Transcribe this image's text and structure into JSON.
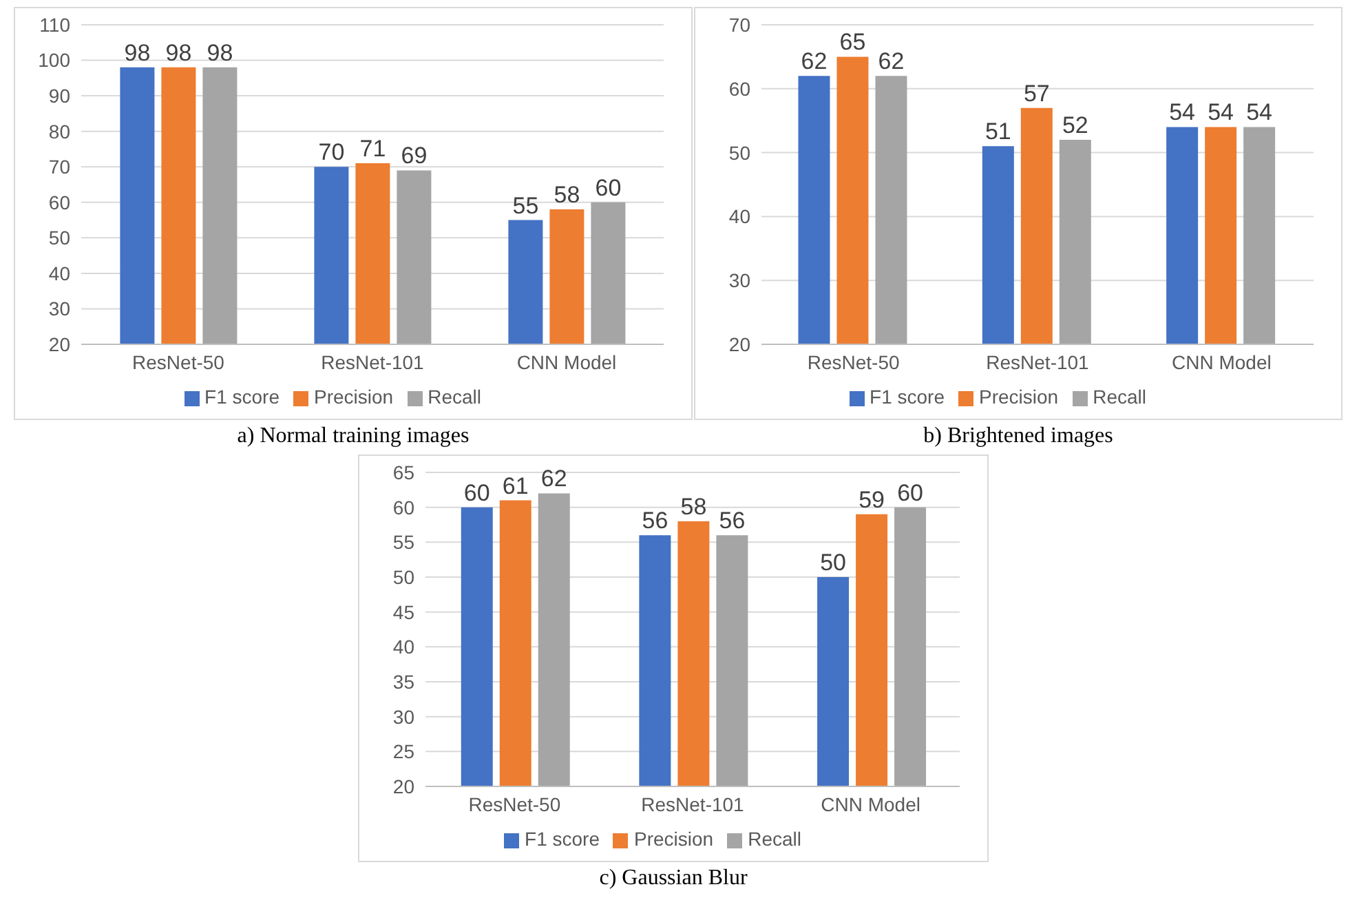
{
  "chart_data": [
    {
      "type": "bar",
      "title": "a) Normal training images",
      "categories": [
        "ResNet-50",
        "ResNet-101",
        "CNN Model"
      ],
      "series": [
        {
          "name": "F1 score",
          "color": "#4472c4",
          "values": [
            98,
            70,
            55
          ]
        },
        {
          "name": "Precision",
          "color": "#ed7d31",
          "values": [
            98,
            71,
            58
          ]
        },
        {
          "name": "Recall",
          "color": "#a5a5a5",
          "values": [
            98,
            69,
            60
          ]
        }
      ],
      "ylim": [
        20,
        110
      ],
      "yticks": [
        20,
        30,
        40,
        50,
        60,
        70,
        80,
        90,
        100,
        110
      ],
      "grid": "y",
      "legend": "bottom",
      "data_labels": true
    },
    {
      "type": "bar",
      "title": "b) Brightened images",
      "categories": [
        "ResNet-50",
        "ResNet-101",
        "CNN Model"
      ],
      "series": [
        {
          "name": "F1 score",
          "color": "#4472c4",
          "values": [
            62,
            51,
            54
          ]
        },
        {
          "name": "Precision",
          "color": "#ed7d31",
          "values": [
            65,
            57,
            54
          ]
        },
        {
          "name": "Recall",
          "color": "#a5a5a5",
          "values": [
            62,
            52,
            54
          ]
        }
      ],
      "ylim": [
        20,
        70
      ],
      "yticks": [
        20,
        30,
        40,
        50,
        60,
        70
      ],
      "grid": "y",
      "legend": "bottom",
      "data_labels": true
    },
    {
      "type": "bar",
      "title": "c) Gaussian Blur",
      "categories": [
        "ResNet-50",
        "ResNet-101",
        "CNN Model"
      ],
      "series": [
        {
          "name": "F1 score",
          "color": "#4472c4",
          "values": [
            60,
            56,
            50
          ]
        },
        {
          "name": "Precision",
          "color": "#ed7d31",
          "values": [
            61,
            58,
            59
          ]
        },
        {
          "name": "Recall",
          "color": "#a5a5a5",
          "values": [
            62,
            56,
            60
          ]
        }
      ],
      "ylim": [
        20,
        65
      ],
      "yticks": [
        20,
        25,
        30,
        35,
        40,
        45,
        50,
        55,
        60,
        65
      ],
      "grid": "y",
      "legend": "bottom",
      "data_labels": true
    }
  ]
}
